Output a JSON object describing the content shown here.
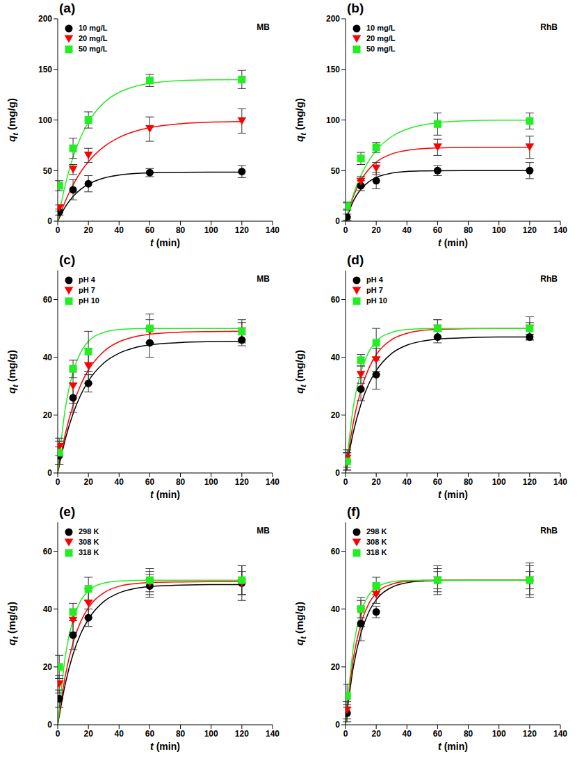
{
  "chart_data": [
    {
      "type": "scatter",
      "title": "(a)",
      "annotation": "MB",
      "x_label": "t (min)",
      "y_label": "qt (mg/g)",
      "xlim": [
        0,
        140
      ],
      "xticks": [
        0,
        20,
        40,
        60,
        80,
        100,
        120,
        140
      ],
      "ylim": [
        0,
        200
      ],
      "yticks": [
        0,
        50,
        100,
        150,
        200
      ],
      "legend": "upper left",
      "fit_x": [
        0,
        5,
        10,
        15,
        20,
        30,
        40,
        50,
        60,
        80,
        100,
        120
      ],
      "series": [
        {
          "name": "10 mg/L",
          "color": "#000000",
          "marker": "circle",
          "x": [
            1,
            10,
            20,
            60,
            120
          ],
          "values": [
            9,
            31,
            37,
            48,
            49
          ],
          "errors": [
            3,
            10,
            8,
            4,
            6
          ],
          "fit": [
            0,
            14.3,
            24.4,
            31.5,
            36.5,
            42.6,
            45.6,
            47.1,
            47.8,
            48.3,
            48.5,
            48.5
          ]
        },
        {
          "name": "20 mg/L",
          "color": "#ff0000",
          "marker": "triangle-down",
          "x": [
            1,
            10,
            20,
            60,
            120
          ],
          "values": [
            13,
            51,
            65,
            91,
            99
          ],
          "errors": [
            3,
            5,
            7,
            12,
            12
          ],
          "fit": [
            0,
            19.9,
            35.8,
            48.6,
            58.7,
            73.4,
            82.7,
            88.6,
            92.4,
            96.3,
            97.9,
            98.5
          ]
        },
        {
          "name": "50 mg/L",
          "color": "#22ee22",
          "marker": "square",
          "x": [
            1,
            10,
            20,
            60,
            120
          ],
          "values": [
            35,
            72,
            100,
            139,
            140
          ],
          "errors": [
            5,
            10,
            8,
            6,
            9
          ],
          "fit": [
            0,
            36.3,
            63.2,
            83.0,
            97.9,
            116.9,
            127.3,
            133.0,
            136.2,
            138.9,
            139.7,
            139.9
          ]
        }
      ]
    },
    {
      "type": "scatter",
      "title": "(b)",
      "annotation": "RhB",
      "x_label": "t (min)",
      "y_label": "qt (mg/g)",
      "xlim": [
        0,
        140
      ],
      "xticks": [
        0,
        20,
        40,
        60,
        80,
        100,
        120,
        140
      ],
      "ylim": [
        0,
        200
      ],
      "yticks": [
        0,
        50,
        100,
        150,
        200
      ],
      "legend": "upper left",
      "fit_x": [
        0,
        5,
        10,
        15,
        20,
        30,
        40,
        50,
        60,
        80,
        100,
        120
      ],
      "series": [
        {
          "name": "10 mg/L",
          "color": "#000000",
          "marker": "circle",
          "x": [
            1,
            10,
            20,
            60,
            120
          ],
          "values": [
            4,
            35,
            40,
            50,
            50
          ],
          "errors": [
            3,
            5,
            8,
            5,
            8
          ],
          "fit": [
            0,
            19.7,
            31.6,
            38.8,
            43.2,
            47.5,
            49.1,
            49.7,
            49.9,
            50,
            50,
            50
          ]
        },
        {
          "name": "20 mg/L",
          "color": "#ff0000",
          "marker": "triangle-down",
          "x": [
            1,
            10,
            20,
            60,
            120
          ],
          "values": [
            15,
            39,
            52,
            73,
            73
          ],
          "errors": [
            3,
            5,
            6,
            8,
            11
          ],
          "fit": [
            0,
            24.1,
            40.2,
            51.0,
            58.3,
            66.4,
            70.0,
            71.7,
            72.4,
            72.9,
            73,
            73
          ]
        },
        {
          "name": "50 mg/L",
          "color": "#22ee22",
          "marker": "square",
          "x": [
            1,
            10,
            20,
            60,
            120
          ],
          "values": [
            15,
            62,
            73,
            96,
            99
          ],
          "errors": [
            4,
            6,
            5,
            11,
            8
          ],
          "fit": [
            0,
            25.9,
            45.1,
            59.3,
            69.9,
            83.5,
            90.9,
            95.0,
            97.3,
            99.2,
            99.8,
            99.9
          ]
        }
      ]
    },
    {
      "type": "scatter",
      "title": "(c)",
      "annotation": "MB",
      "x_label": "t (min)",
      "y_label": "qt (mg/g)",
      "xlim": [
        0,
        140
      ],
      "xticks": [
        0,
        20,
        40,
        60,
        80,
        100,
        120,
        140
      ],
      "ylim": [
        0,
        70
      ],
      "yticks": [
        0,
        20,
        40,
        60
      ],
      "legend": "upper left",
      "fit_x": [
        0,
        5,
        10,
        15,
        20,
        30,
        40,
        50,
        60,
        80,
        100,
        120
      ],
      "series": [
        {
          "name": "pH 4",
          "color": "#000000",
          "marker": "circle",
          "x": [
            1,
            10,
            20,
            60,
            120
          ],
          "values": [
            6,
            26,
            31,
            45,
            46
          ],
          "errors": [
            3,
            5,
            3,
            5,
            2
          ],
          "fit": [
            0,
            11.8,
            20.5,
            27.0,
            31.8,
            38.0,
            41.4,
            43.3,
            44.3,
            45.1,
            45.4,
            45.5
          ]
        },
        {
          "name": "pH 7",
          "color": "#ff0000",
          "marker": "triangle-down",
          "x": [
            1,
            10,
            20,
            60,
            120
          ],
          "values": [
            9,
            30,
            37,
            49,
            49
          ],
          "errors": [
            3,
            6,
            6,
            4,
            3
          ],
          "fit": [
            0,
            13.6,
            23.4,
            30.5,
            35.6,
            42.0,
            45.4,
            47.1,
            48.0,
            48.7,
            48.9,
            49
          ]
        },
        {
          "name": "pH 10",
          "color": "#22ee22",
          "marker": "square",
          "x": [
            1,
            10,
            20,
            60,
            120
          ],
          "values": [
            7,
            36,
            42,
            50,
            49
          ],
          "errors": [
            4,
            3,
            7,
            5,
            4
          ],
          "fit": [
            0,
            22.6,
            34.9,
            41.7,
            45.5,
            48.6,
            49.6,
            49.9,
            50,
            50,
            50,
            50
          ]
        }
      ]
    },
    {
      "type": "scatter",
      "title": "(d)",
      "annotation": "RhB",
      "x_label": "t (min)",
      "y_label": "qt (mg/g)",
      "xlim": [
        0,
        140
      ],
      "xticks": [
        0,
        20,
        40,
        60,
        80,
        100,
        120,
        140
      ],
      "ylim": [
        0,
        70
      ],
      "yticks": [
        0,
        20,
        40,
        60
      ],
      "legend": "upper left",
      "fit_x": [
        0,
        5,
        10,
        15,
        20,
        30,
        40,
        50,
        60,
        80,
        100,
        120
      ],
      "series": [
        {
          "name": "pH 4",
          "color": "#000000",
          "marker": "circle",
          "x": [
            1,
            10,
            20,
            60,
            120
          ],
          "values": [
            4,
            29,
            34,
            47,
            47
          ],
          "errors": [
            3,
            4,
            5,
            2,
            1
          ],
          "fit": [
            0,
            13.9,
            23.7,
            30.6,
            35.4,
            41.3,
            44.2,
            45.6,
            46.3,
            46.8,
            47,
            47
          ]
        },
        {
          "name": "pH 7",
          "color": "#ff0000",
          "marker": "triangle-down",
          "x": [
            1,
            10,
            20,
            60,
            120
          ],
          "values": [
            5,
            34,
            39,
            50,
            50
          ],
          "errors": [
            3,
            3,
            4,
            3,
            2
          ],
          "fit": [
            0,
            17.3,
            28.6,
            36.0,
            40.9,
            46.1,
            48.3,
            49.3,
            49.7,
            49.9,
            50,
            50
          ]
        },
        {
          "name": "pH 10",
          "color": "#22ee22",
          "marker": "square",
          "x": [
            1,
            10,
            20,
            60,
            120
          ],
          "values": [
            4,
            39,
            45,
            50,
            50
          ],
          "errors": [
            3,
            2,
            5,
            3,
            4
          ],
          "fit": [
            0,
            22.6,
            34.9,
            41.7,
            45.5,
            48.6,
            49.6,
            49.9,
            50,
            50,
            50,
            50
          ]
        }
      ]
    },
    {
      "type": "scatter",
      "title": "(e)",
      "annotation": "MB",
      "x_label": "t (min)",
      "y_label": "qt (mg/g)",
      "xlim": [
        0,
        140
      ],
      "xticks": [
        0,
        20,
        40,
        60,
        80,
        100,
        120,
        140
      ],
      "ylim": [
        0,
        70
      ],
      "yticks": [
        0,
        20,
        40,
        60
      ],
      "legend": "upper left",
      "fit_x": [
        0,
        5,
        10,
        15,
        20,
        30,
        40,
        50,
        60,
        80,
        100,
        120
      ],
      "series": [
        {
          "name": "298 K",
          "color": "#000000",
          "marker": "circle",
          "x": [
            1,
            10,
            20,
            60,
            120
          ],
          "values": [
            9,
            31,
            37,
            48,
            49
          ],
          "errors": [
            3,
            5,
            3,
            4,
            6
          ],
          "fit": [
            0,
            14.3,
            24.4,
            31.5,
            36.5,
            42.6,
            45.6,
            47.1,
            47.8,
            48.3,
            48.5,
            48.5
          ]
        },
        {
          "name": "308 K",
          "color": "#ff0000",
          "marker": "triangle-down",
          "x": [
            1,
            10,
            20,
            60,
            120
          ],
          "values": [
            14,
            36,
            42,
            49,
            49
          ],
          "errors": [
            3,
            4,
            5,
            4,
            4
          ],
          "fit": [
            0,
            17.1,
            28.4,
            35.7,
            40.5,
            45.6,
            47.9,
            48.8,
            49.2,
            49.4,
            49.5,
            49.5
          ]
        },
        {
          "name": "318 K",
          "color": "#22ee22",
          "marker": "square",
          "x": [
            1,
            10,
            20,
            60,
            120
          ],
          "values": [
            20,
            39,
            47,
            50,
            50
          ],
          "errors": [
            4,
            3,
            4,
            4,
            5
          ],
          "fit": [
            0,
            23.9,
            36.4,
            42.9,
            46.3,
            49.0,
            49.7,
            49.9,
            50,
            50,
            50,
            50
          ]
        }
      ]
    },
    {
      "type": "scatter",
      "title": "(f)",
      "annotation": "RhB",
      "x_label": "t (min)",
      "y_label": "qt (mg/g)",
      "xlim": [
        0,
        140
      ],
      "xticks": [
        0,
        20,
        40,
        60,
        80,
        100,
        120,
        140
      ],
      "ylim": [
        0,
        70
      ],
      "yticks": [
        0,
        20,
        40,
        60
      ],
      "legend": "upper left",
      "fit_x": [
        0,
        5,
        10,
        15,
        20,
        30,
        40,
        50,
        60,
        80,
        100,
        120
      ],
      "series": [
        {
          "name": "298 K",
          "color": "#000000",
          "marker": "circle",
          "x": [
            1,
            10,
            20,
            60,
            120
          ],
          "values": [
            4,
            35,
            39,
            50,
            50
          ],
          "errors": [
            3,
            6,
            2,
            5,
            6
          ],
          "fit": [
            0,
            19.7,
            31.6,
            38.8,
            43.2,
            47.5,
            49.1,
            49.7,
            49.9,
            50,
            50,
            50
          ]
        },
        {
          "name": "308 K",
          "color": "#ff0000",
          "marker": "triangle-down",
          "x": [
            1,
            10,
            20,
            60,
            120
          ],
          "values": [
            5,
            39,
            45,
            50,
            50
          ],
          "errors": [
            3,
            5,
            3,
            3,
            3
          ],
          "fit": [
            0,
            22.6,
            34.9,
            41.7,
            45.5,
            48.6,
            49.6,
            49.9,
            50,
            50,
            50,
            50
          ]
        },
        {
          "name": "318 K",
          "color": "#22ee22",
          "marker": "square",
          "x": [
            1,
            10,
            20,
            60,
            120
          ],
          "values": [
            10,
            40,
            48,
            50,
            50
          ],
          "errors": [
            4,
            3,
            3,
            4,
            5
          ],
          "fit": [
            0,
            26.4,
            38.8,
            44.7,
            47.5,
            49.4,
            49.9,
            50,
            50,
            50,
            50,
            50
          ]
        }
      ]
    }
  ]
}
